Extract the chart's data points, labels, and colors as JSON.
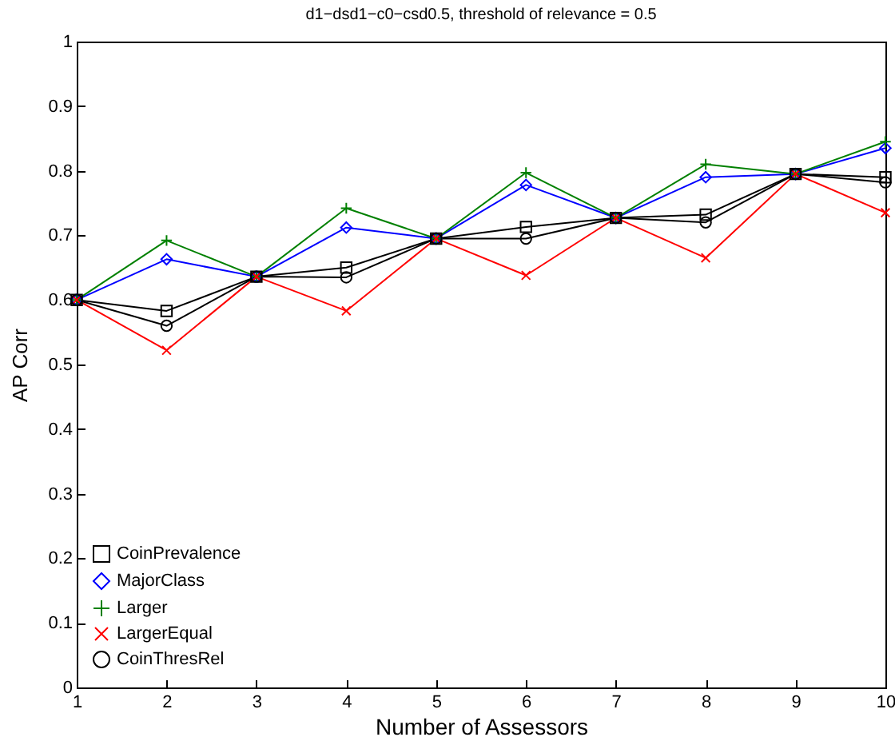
{
  "chart_data": {
    "type": "line",
    "title": "d1−dsd1−c0−csd0.5, threshold of relevance = 0.5",
    "xlabel": "Number of Assessors",
    "ylabel": "AP Corr",
    "x": [
      1,
      2,
      3,
      4,
      5,
      6,
      7,
      8,
      9,
      10
    ],
    "xlim": [
      1,
      10
    ],
    "xticks": [
      1,
      2,
      3,
      4,
      5,
      6,
      7,
      8,
      9,
      10
    ],
    "ylim": [
      0,
      1
    ],
    "yticks": [
      0,
      0.1,
      0.2,
      0.3,
      0.4,
      0.5,
      0.6,
      0.7,
      0.8,
      0.9,
      1
    ],
    "grid": false,
    "legend": "bottom left",
    "line_style": "solid",
    "series": [
      {
        "name": "CoinPrevalence",
        "color": "#000000",
        "marker": "square",
        "values": [
          0.6,
          0.583,
          0.636,
          0.65,
          0.695,
          0.713,
          0.727,
          0.732,
          0.795,
          0.79
        ]
      },
      {
        "name": "MajorClass",
        "color": "#0000ff",
        "marker": "diamond",
        "values": [
          0.6,
          0.663,
          0.636,
          0.712,
          0.695,
          0.778,
          0.727,
          0.79,
          0.795,
          0.835
        ]
      },
      {
        "name": "Larger",
        "color": "#008000",
        "marker": "plus",
        "values": [
          0.6,
          0.692,
          0.636,
          0.742,
          0.695,
          0.797,
          0.727,
          0.81,
          0.795,
          0.845
        ]
      },
      {
        "name": "LargerEqual",
        "color": "#ff0000",
        "marker": "cross",
        "values": [
          0.6,
          0.522,
          0.636,
          0.583,
          0.695,
          0.638,
          0.727,
          0.665,
          0.795,
          0.735
        ]
      },
      {
        "name": "CoinThresRel",
        "color": "#000000",
        "marker": "circle",
        "values": [
          0.6,
          0.56,
          0.636,
          0.635,
          0.695,
          0.695,
          0.727,
          0.72,
          0.795,
          0.782
        ]
      }
    ]
  }
}
